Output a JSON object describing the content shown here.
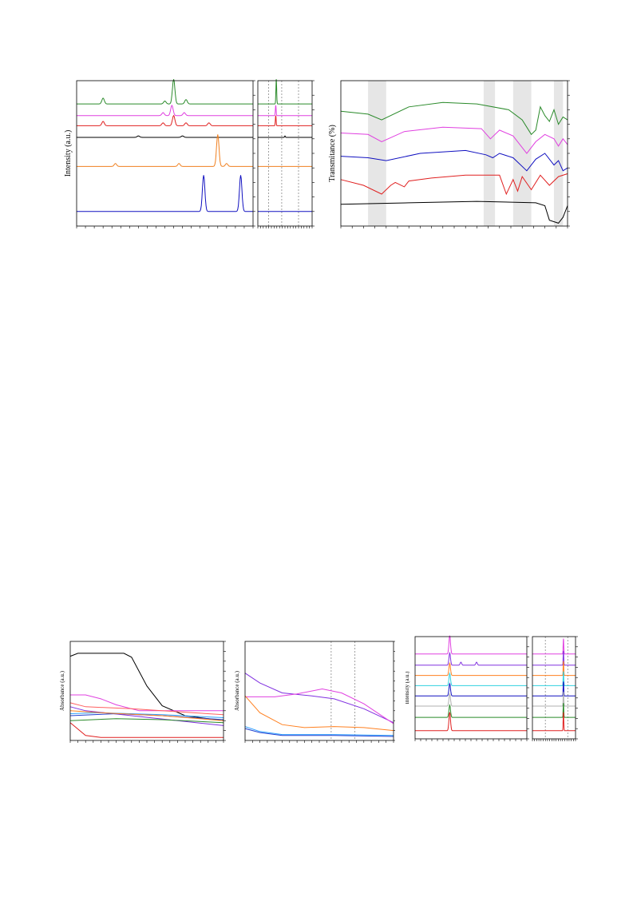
{
  "chart_data": [
    {
      "type": "line",
      "panel": "xrd-full",
      "ylabel": "Intensity (a.u.)",
      "xlabel": "",
      "grid": false,
      "legend": "none",
      "xlim": [
        0,
        100
      ],
      "ylim": [
        0,
        100
      ],
      "series": [
        {
          "color": "#2a8a2a",
          "baseline": 84,
          "peaks": [
            [
              15,
              4
            ],
            [
              55,
              17
            ],
            [
              50,
              2
            ],
            [
              62,
              3
            ]
          ]
        },
        {
          "color": "#e040e0",
          "baseline": 76,
          "peaks": [
            [
              54,
              7
            ],
            [
              49,
              2
            ],
            [
              61,
              2
            ]
          ]
        },
        {
          "color": "#e02020",
          "baseline": 69,
          "peaks": [
            [
              15,
              3
            ],
            [
              55,
              7
            ],
            [
              49,
              2
            ],
            [
              62,
              2
            ],
            [
              75,
              2
            ]
          ]
        },
        {
          "color": "#000000",
          "baseline": 61,
          "peaks": [
            [
              35,
              1
            ],
            [
              60,
              1
            ]
          ]
        },
        {
          "color": "#f08020",
          "baseline": 41,
          "peaks": [
            [
              22,
              2
            ],
            [
              58,
              2
            ],
            [
              80,
              22
            ],
            [
              85,
              2
            ]
          ]
        },
        {
          "color": "#1010c0",
          "baseline": 10,
          "peaks": [
            [
              72,
              25
            ],
            [
              93,
              25
            ]
          ]
        }
      ]
    },
    {
      "type": "line",
      "panel": "xrd-zoom",
      "xlabel": "",
      "ylabel": "",
      "grid": false,
      "legend": "none",
      "xlim": [
        0,
        100
      ],
      "ylim": [
        0,
        100
      ],
      "reference_lines_x": [
        20,
        44,
        75
      ],
      "series": [
        {
          "color": "#2a8a2a",
          "baseline": 84,
          "peaks": [
            [
              34,
              17
            ]
          ]
        },
        {
          "color": "#e040e0",
          "baseline": 76,
          "peaks": [
            [
              33,
              7
            ]
          ]
        },
        {
          "color": "#e02020",
          "baseline": 69,
          "peaks": [
            [
              33,
              7
            ]
          ]
        },
        {
          "color": "#000000",
          "baseline": 61,
          "peaks": [
            [
              50,
              1
            ]
          ]
        },
        {
          "color": "#f08020",
          "baseline": 41,
          "peaks": []
        },
        {
          "color": "#1010c0",
          "baseline": 10,
          "peaks": []
        }
      ]
    },
    {
      "type": "line",
      "panel": "ftir",
      "ylabel": "Transmitance (%)",
      "xlabel": "",
      "grid": false,
      "legend": "none",
      "xlim": [
        0,
        100
      ],
      "ylim": [
        0,
        100
      ],
      "shaded_x_ranges": [
        [
          12,
          20
        ],
        [
          63,
          68
        ],
        [
          76,
          84
        ],
        [
          94,
          98
        ]
      ],
      "series": [
        {
          "color": "#2a8a2a",
          "points": [
            [
              0,
              79
            ],
            [
              12,
              77
            ],
            [
              18,
              73
            ],
            [
              30,
              82
            ],
            [
              45,
              85
            ],
            [
              60,
              84
            ],
            [
              74,
              80
            ],
            [
              80,
              73
            ],
            [
              84,
              63
            ],
            [
              86,
              66
            ],
            [
              88,
              82
            ],
            [
              90,
              76
            ],
            [
              92,
              72
            ],
            [
              94,
              80
            ],
            [
              96,
              70
            ],
            [
              98,
              75
            ],
            [
              100,
              73
            ]
          ]
        },
        {
          "color": "#e040e0",
          "points": [
            [
              0,
              64
            ],
            [
              12,
              63
            ],
            [
              18,
              58
            ],
            [
              28,
              65
            ],
            [
              45,
              68
            ],
            [
              62,
              67
            ],
            [
              66,
              60
            ],
            [
              70,
              66
            ],
            [
              76,
              62
            ],
            [
              82,
              50
            ],
            [
              86,
              58
            ],
            [
              90,
              63
            ],
            [
              94,
              60
            ],
            [
              96,
              55
            ],
            [
              98,
              60
            ],
            [
              100,
              56
            ]
          ]
        },
        {
          "color": "#1010c0",
          "points": [
            [
              0,
              48
            ],
            [
              12,
              47
            ],
            [
              20,
              45
            ],
            [
              35,
              50
            ],
            [
              55,
              52
            ],
            [
              64,
              49
            ],
            [
              67,
              47
            ],
            [
              70,
              50
            ],
            [
              76,
              47
            ],
            [
              82,
              38
            ],
            [
              86,
              46
            ],
            [
              90,
              50
            ],
            [
              94,
              42
            ],
            [
              96,
              45
            ],
            [
              98,
              38
            ],
            [
              100,
              40
            ]
          ]
        },
        {
          "color": "#e02020",
          "points": [
            [
              0,
              32
            ],
            [
              10,
              28
            ],
            [
              18,
              22
            ],
            [
              22,
              28
            ],
            [
              24,
              30
            ],
            [
              28,
              27
            ],
            [
              30,
              31
            ],
            [
              40,
              33
            ],
            [
              55,
              35
            ],
            [
              70,
              35
            ],
            [
              73,
              22
            ],
            [
              76,
              32
            ],
            [
              78,
              24
            ],
            [
              80,
              34
            ],
            [
              84,
              25
            ],
            [
              88,
              35
            ],
            [
              92,
              28
            ],
            [
              96,
              34
            ],
            [
              100,
              36
            ]
          ]
        },
        {
          "color": "#000000",
          "points": [
            [
              0,
              15
            ],
            [
              30,
              16
            ],
            [
              60,
              17
            ],
            [
              86,
              16
            ],
            [
              90,
              14
            ],
            [
              92,
              4
            ],
            [
              96,
              2
            ],
            [
              98,
              6
            ],
            [
              100,
              14
            ]
          ]
        }
      ]
    },
    {
      "type": "line",
      "panel": "uv-vis-1",
      "ylabel": "Absorbance (a.u.)",
      "xlabel": "",
      "grid": false,
      "legend": "none",
      "xlim": [
        0,
        100
      ],
      "ylim": [
        0,
        100
      ],
      "series": [
        {
          "color": "#000000",
          "points": [
            [
              0,
              85
            ],
            [
              5,
              88
            ],
            [
              35,
              88
            ],
            [
              40,
              84
            ],
            [
              50,
              55
            ],
            [
              60,
              35
            ],
            [
              75,
              25
            ],
            [
              100,
              20
            ]
          ]
        },
        {
          "color": "#e040e0",
          "points": [
            [
              0,
              46
            ],
            [
              10,
              46
            ],
            [
              20,
              42
            ],
            [
              30,
              36
            ],
            [
              45,
              30
            ],
            [
              60,
              30
            ],
            [
              100,
              30
            ]
          ]
        },
        {
          "color": "#ff6060",
          "points": [
            [
              0,
              38
            ],
            [
              10,
              34
            ],
            [
              40,
              32
            ],
            [
              100,
              26
            ]
          ]
        },
        {
          "color": "#8030e0",
          "points": [
            [
              0,
              34
            ],
            [
              10,
              30
            ],
            [
              40,
              25
            ],
            [
              70,
              20
            ],
            [
              100,
              15
            ]
          ]
        },
        {
          "color": "#30a0ff",
          "points": [
            [
              0,
              27
            ],
            [
              20,
              28
            ],
            [
              60,
              26
            ],
            [
              100,
              23
            ]
          ]
        },
        {
          "color": "#2040d0",
          "points": [
            [
              0,
              25
            ],
            [
              30,
              27
            ],
            [
              60,
              25
            ],
            [
              100,
              21
            ]
          ]
        },
        {
          "color": "#2a8a2a",
          "points": [
            [
              0,
              20
            ],
            [
              30,
              22
            ],
            [
              60,
              21
            ],
            [
              100,
              18
            ]
          ]
        },
        {
          "color": "#ff8020",
          "points": [
            [
              0,
              30
            ],
            [
              20,
              28
            ],
            [
              60,
              25
            ],
            [
              100,
              20
            ]
          ]
        },
        {
          "color": "#e02020",
          "points": [
            [
              0,
              18
            ],
            [
              10,
              5
            ],
            [
              20,
              3
            ],
            [
              100,
              3
            ]
          ]
        }
      ]
    },
    {
      "type": "line",
      "panel": "uv-vis-2",
      "ylabel": "Absorbance (a.u.)",
      "xlabel": "",
      "grid": false,
      "legend": "none",
      "xlim": [
        0,
        100
      ],
      "ylim": [
        0,
        100
      ],
      "reference_lines_x": [
        58,
        74
      ],
      "series": [
        {
          "color": "#8030e0",
          "points": [
            [
              0,
              68
            ],
            [
              10,
              58
            ],
            [
              25,
              48
            ],
            [
              45,
              45
            ],
            [
              60,
              42
            ],
            [
              80,
              32
            ],
            [
              100,
              18
            ]
          ]
        },
        {
          "color": "#e040e0",
          "points": [
            [
              0,
              44
            ],
            [
              20,
              44
            ],
            [
              35,
              47
            ],
            [
              52,
              52
            ],
            [
              65,
              48
            ],
            [
              80,
              37
            ],
            [
              100,
              17
            ]
          ]
        },
        {
          "color": "#ff8020",
          "points": [
            [
              0,
              45
            ],
            [
              10,
              28
            ],
            [
              25,
              16
            ],
            [
              40,
              13
            ],
            [
              60,
              14
            ],
            [
              80,
              13
            ],
            [
              100,
              10
            ]
          ]
        },
        {
          "color": "#30a0ff",
          "points": [
            [
              0,
              14
            ],
            [
              10,
              9
            ],
            [
              25,
              6
            ],
            [
              60,
              6
            ],
            [
              100,
              5
            ]
          ]
        },
        {
          "color": "#2040d0",
          "points": [
            [
              0,
              12
            ],
            [
              10,
              8
            ],
            [
              25,
              5
            ],
            [
              60,
              5
            ],
            [
              100,
              4
            ]
          ]
        }
      ]
    },
    {
      "type": "line",
      "panel": "xrd-full-2",
      "ylabel": "Intensity (a.u.)",
      "xlabel": "",
      "grid": false,
      "legend": "none",
      "xlim": [
        0,
        100
      ],
      "ylim": [
        0,
        100
      ],
      "series": [
        {
          "color": "#e040e0",
          "baseline": 83,
          "peaks": [
            [
              31,
              18
            ]
          ]
        },
        {
          "color": "#8030e0",
          "baseline": 72,
          "peaks": [
            [
              31,
              12
            ],
            [
              41,
              3
            ],
            [
              55,
              3
            ]
          ]
        },
        {
          "color": "#ff8020",
          "baseline": 62,
          "peaks": [
            [
              31,
              12
            ]
          ]
        },
        {
          "color": "#30d0e0",
          "baseline": 52,
          "peaks": [
            [
              31,
              12
            ]
          ]
        },
        {
          "color": "#1010c0",
          "baseline": 42,
          "peaks": [
            [
              31,
              12
            ]
          ]
        },
        {
          "color": "#b0b0b0",
          "baseline": 32,
          "peaks": [
            [
              31,
              12
            ]
          ]
        },
        {
          "color": "#2a8a2a",
          "baseline": 21,
          "peaks": [
            [
              31,
              12
            ]
          ]
        },
        {
          "color": "#e02020",
          "baseline": 8,
          "peaks": [
            [
              31,
              18
            ]
          ]
        }
      ]
    },
    {
      "type": "line",
      "panel": "xrd-zoom-2",
      "xlabel": "",
      "ylabel": "",
      "grid": false,
      "legend": "none",
      "xlim": [
        0,
        100
      ],
      "ylim": [
        0,
        100
      ],
      "reference_lines_x": [
        30,
        82
      ],
      "series": [
        {
          "color": "#e040e0",
          "baseline": 83,
          "peaks": [
            [
              72,
              15
            ]
          ]
        },
        {
          "color": "#8030e0",
          "baseline": 72,
          "peaks": [
            [
              72,
              14
            ]
          ]
        },
        {
          "color": "#ff8020",
          "baseline": 62,
          "peaks": [
            [
              72,
              14
            ]
          ]
        },
        {
          "color": "#30d0e0",
          "baseline": 52,
          "peaks": [
            [
              72,
              14
            ]
          ]
        },
        {
          "color": "#1010c0",
          "baseline": 42,
          "peaks": [
            [
              72,
              14
            ]
          ]
        },
        {
          "color": "#b0b0b0",
          "baseline": 32,
          "peaks": [
            [
              72,
              14
            ]
          ]
        },
        {
          "color": "#2a8a2a",
          "baseline": 21,
          "peaks": [
            [
              72,
              14
            ]
          ]
        },
        {
          "color": "#e02020",
          "baseline": 8,
          "peaks": [
            [
              72,
              18
            ]
          ]
        }
      ]
    }
  ]
}
